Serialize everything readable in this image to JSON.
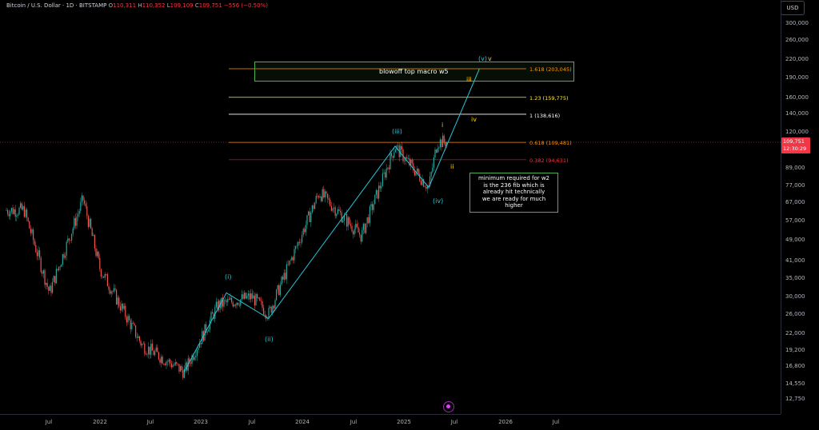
{
  "header": {
    "symbol": "Bitcoin / U.S. Dollar · 1D · BITSTAMP",
    "o_label": "O",
    "o_value": "110,311",
    "h_label": "H",
    "h_value": "110,352",
    "l_label": "L",
    "l_value": "109,109",
    "c_label": "C",
    "c_value": "109,751",
    "change": "−556 (−0.50%)"
  },
  "currency": "USD",
  "price_tag": {
    "price": "109,751",
    "countdown": "12:30:29"
  },
  "y_ticks": [
    "300,000",
    "260,000",
    "220,000",
    "190,000",
    "160,000",
    "140,000",
    "120,000",
    "89,000",
    "77,000",
    "67,000",
    "57,000",
    "49,000",
    "41,000",
    "35,000",
    "30,000",
    "26,000",
    "22,000",
    "19,200",
    "16,800",
    "14,550",
    "12,750"
  ],
  "x_ticks": [
    "Jul",
    "2022",
    "Jul",
    "2023",
    "Jul",
    "2024",
    "Jul",
    "2025",
    "Jul",
    "2026",
    "Jul"
  ],
  "fib_levels": [
    {
      "label": "1.618 (203,045)",
      "color": "#ff9800"
    },
    {
      "label": "1.23 (159,775)",
      "color": "#ffeb3b"
    },
    {
      "label": "1 (138,616)",
      "color": "#ffffff"
    },
    {
      "label": "0.618 (109,481)",
      "color": "#ff9800"
    },
    {
      "label": "0.382 (94,631)",
      "color": "#f23645"
    }
  ],
  "blowoff_label": "blowoff top macro w5",
  "wave_labels": {
    "i_major": "(i)",
    "ii_major": "(ii)",
    "iii_major": "(iii)",
    "iv_major": "(iv)",
    "v_major": "(v)",
    "minor_i": "i",
    "minor_ii": "ii",
    "minor_iii": "iii",
    "minor_iv": "iv",
    "minor_v": "v"
  },
  "note_lines": [
    "minimum required for w2",
    "is the 236 fib which is",
    "already hit technically",
    "we are ready for much",
    "higher"
  ],
  "chart_data": {
    "type": "candlestick",
    "title": "Bitcoin / U.S. Dollar · 1D · BITSTAMP",
    "yscale": "log",
    "ylim": [
      11500,
      330000
    ],
    "series": [
      {
        "name": "BTCUSD",
        "x": [
          "2021-04",
          "2021-07",
          "2021-11",
          "2022-01",
          "2022-06",
          "2022-11",
          "2023-03",
          "2023-07",
          "2023-09",
          "2024-03",
          "2024-08",
          "2024-12",
          "2025-04",
          "2025-05"
        ],
        "values": [
          62000,
          31000,
          68000,
          38000,
          20000,
          16000,
          28000,
          30000,
          26000,
          72000,
          50000,
          106000,
          75000,
          110000
        ]
      }
    ],
    "wave_path": [
      {
        "x": "2022-11",
        "y": 16000
      },
      {
        "x": "2023-04",
        "y": 31000
      },
      {
        "x": "2023-09",
        "y": 25000
      },
      {
        "x": "2024-12",
        "y": 106000
      },
      {
        "x": "2025-04",
        "y": 75000
      },
      {
        "x": "2025-10",
        "y": 203045
      }
    ],
    "grid": false
  }
}
